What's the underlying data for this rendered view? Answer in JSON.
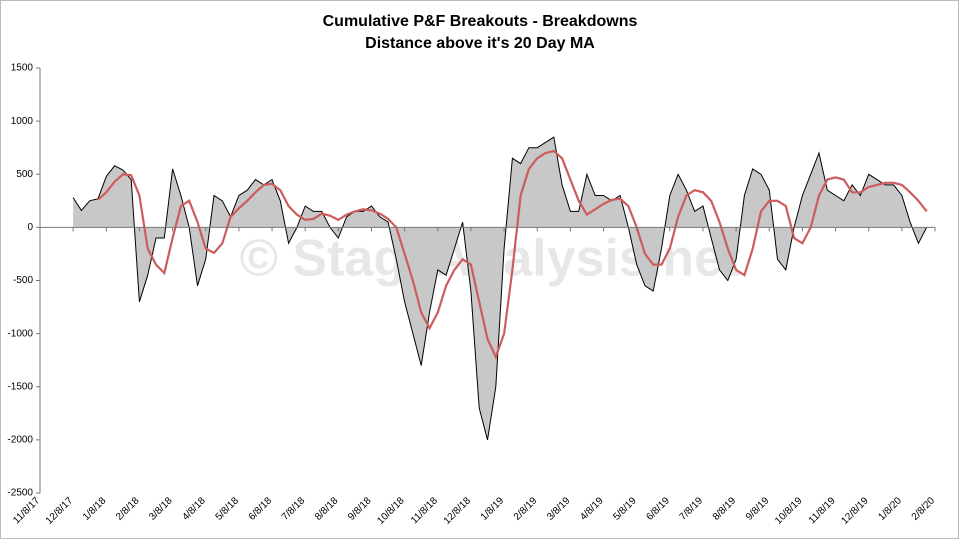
{
  "chart_data": {
    "type": "area-line",
    "title": [
      "Cumulative P&F Breakouts - Breakdowns",
      "Distance above it's 20 Day MA"
    ],
    "watermark": "© StageAnalysis.net",
    "categories": [
      "11/8/17",
      null,
      null,
      null,
      "12/8/17",
      null,
      null,
      null,
      "1/8/18",
      null,
      null,
      null,
      "2/8/18",
      null,
      null,
      null,
      "3/8/18",
      null,
      null,
      null,
      "4/8/18",
      null,
      null,
      null,
      "5/8/18",
      null,
      null,
      null,
      "6/8/18",
      null,
      null,
      null,
      "7/8/18",
      null,
      null,
      null,
      "8/8/18",
      null,
      null,
      null,
      "9/8/18",
      null,
      null,
      null,
      "10/8/18",
      null,
      null,
      null,
      "11/8/18",
      null,
      null,
      null,
      "12/8/18",
      null,
      null,
      null,
      "1/8/19",
      null,
      null,
      null,
      "2/8/19",
      null,
      null,
      null,
      "3/8/19",
      null,
      null,
      null,
      "4/8/19",
      null,
      null,
      null,
      "5/8/19",
      null,
      null,
      null,
      "6/8/19",
      null,
      null,
      null,
      "7/8/19",
      null,
      null,
      null,
      "8/8/19",
      null,
      null,
      null,
      "9/8/19",
      null,
      null,
      null,
      "10/8/19",
      null,
      null,
      null,
      "11/8/19",
      null,
      null,
      null,
      "12/8/19",
      null,
      null,
      null,
      "1/8/20",
      null,
      null,
      null,
      "2/8/20"
    ],
    "series": [
      {
        "color": "#c8c8c8",
        "values": [
          null,
          null,
          null,
          null,
          280,
          160,
          250,
          270,
          480,
          580,
          540,
          450,
          -700,
          -450,
          -100,
          -100,
          550,
          300,
          0,
          -550,
          -300,
          300,
          250,
          100,
          300,
          350,
          450,
          400,
          450,
          250,
          -150,
          0,
          200,
          150,
          150,
          0,
          -100,
          100,
          150,
          150,
          200,
          100,
          50,
          -300,
          -700,
          -1000,
          -1300,
          -800,
          -400,
          -450,
          -200,
          50,
          -600,
          -1700,
          -2000,
          -1500,
          -200,
          650,
          600,
          750,
          750,
          800,
          850,
          400,
          150,
          150,
          500,
          300,
          300,
          250,
          300,
          0,
          -350,
          -550,
          -600,
          -200,
          300,
          500,
          350,
          150,
          200,
          -100,
          -400,
          -500,
          -300,
          300,
          550,
          500,
          350,
          -300,
          -400,
          0,
          300,
          500,
          700,
          350,
          300,
          250,
          400,
          300,
          500,
          450,
          400,
          400,
          300,
          50,
          -150,
          0,
          null
        ]
      },
      {
        "color": "#cd5c5c",
        "values": [
          null,
          null,
          null,
          null,
          null,
          null,
          null,
          260,
          330,
          430,
          500,
          490,
          300,
          -200,
          -350,
          -430,
          -100,
          200,
          250,
          50,
          -200,
          -240,
          -150,
          100,
          180,
          250,
          330,
          400,
          410,
          350,
          200,
          120,
          70,
          80,
          130,
          110,
          70,
          120,
          150,
          170,
          160,
          130,
          80,
          0,
          -250,
          -500,
          -800,
          -950,
          -800,
          -550,
          -400,
          -300,
          -350,
          -700,
          -1050,
          -1220,
          -1000,
          -400,
          300,
          550,
          650,
          700,
          720,
          650,
          450,
          250,
          120,
          170,
          220,
          260,
          270,
          200,
          0,
          -250,
          -350,
          -350,
          -200,
          100,
          300,
          350,
          330,
          250,
          50,
          -200,
          -400,
          -450,
          -200,
          150,
          250,
          250,
          200,
          -100,
          -150,
          0,
          300,
          450,
          470,
          450,
          330,
          330,
          380,
          400,
          420,
          420,
          400,
          330,
          250,
          150,
          null
        ]
      }
    ],
    "ylim": [
      -2500,
      1500
    ],
    "yticks": [
      -2500,
      -2000,
      -1500,
      -1000,
      -500,
      0,
      500,
      1000,
      1500
    ]
  }
}
